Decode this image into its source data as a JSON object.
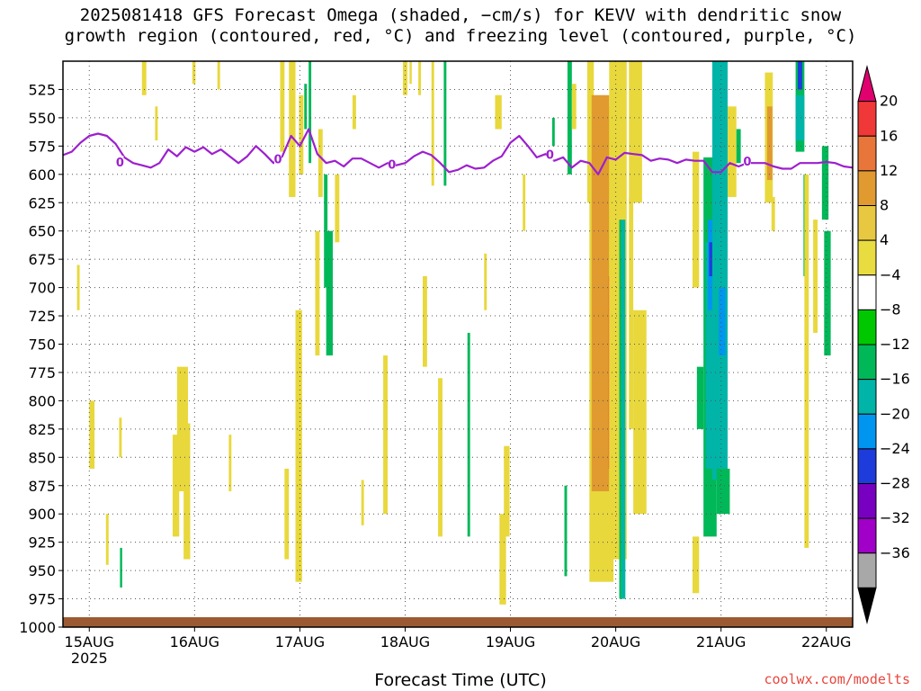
{
  "title": "2025081418 GFS Forecast Omega (shaded, −cm/s) for KEVV with dendritic snow\ngrowth region (contoured, red, °C) and freezing level (contoured, purple, °C)",
  "credit": "coolwx.com/modelts",
  "colors": {
    "freezing_line": "#9d1fcf",
    "ground": "#9b5a33",
    "grid": "#555555"
  },
  "chart_data": {
    "type": "heatmap",
    "title": "2025081418 GFS Forecast Omega (shaded, −cm/s) for KEVV with dendritic snow growth region (contoured, red, °C) and freezing level (contoured, purple, °C)",
    "xlabel": "Forecast Time (UTC)",
    "ylabel": "",
    "x_ticks": [
      {
        "label": "15AUG",
        "sub": "2025",
        "t": 6
      },
      {
        "label": "16AUG",
        "sub": "",
        "t": 30
      },
      {
        "label": "17AUG",
        "sub": "",
        "t": 54
      },
      {
        "label": "18AUG",
        "sub": "",
        "t": 78
      },
      {
        "label": "19AUG",
        "sub": "",
        "t": 102
      },
      {
        "label": "20AUG",
        "sub": "",
        "t": 126
      },
      {
        "label": "21AUG",
        "sub": "",
        "t": 150
      },
      {
        "label": "22AUG",
        "sub": "",
        "t": 174
      }
    ],
    "x_range_hours": [
      0,
      180
    ],
    "y_ticks": [
      525,
      550,
      575,
      600,
      625,
      650,
      675,
      700,
      725,
      750,
      775,
      800,
      825,
      850,
      875,
      900,
      925,
      950,
      975,
      1000
    ],
    "y_range_hPa": [
      500,
      1000
    ],
    "grid": true,
    "colorbar": {
      "labels": [
        "20",
        "16",
        "12",
        "8",
        "4",
        "−4",
        "−8",
        "−12",
        "−16",
        "−20",
        "−24",
        "−28",
        "−32",
        "−36"
      ],
      "colors": [
        "#e0006e",
        "#f03838",
        "#e8763a",
        "#e09a30",
        "#e8c840",
        "#e8dc40",
        "#ffffff",
        "#00c800",
        "#00b858",
        "#00b4a8",
        "#0096f0",
        "#1e3cdc",
        "#7800c0",
        "#a000c8",
        "#a8a8a8",
        "#000000"
      ]
    },
    "freezing_level_hPa": [
      [
        0,
        583
      ],
      [
        2,
        580
      ],
      [
        4,
        572
      ],
      [
        6,
        566
      ],
      [
        8,
        564
      ],
      [
        10,
        566
      ],
      [
        12,
        573
      ],
      [
        14,
        585
      ],
      [
        16,
        590
      ],
      [
        18,
        592
      ],
      [
        20,
        594
      ],
      [
        22,
        590
      ],
      [
        24,
        578
      ],
      [
        26,
        584
      ],
      [
        28,
        576
      ],
      [
        30,
        580
      ],
      [
        32,
        576
      ],
      [
        34,
        582
      ],
      [
        36,
        578
      ],
      [
        38,
        584
      ],
      [
        40,
        590
      ],
      [
        42,
        584
      ],
      [
        44,
        575
      ],
      [
        46,
        582
      ],
      [
        48,
        590
      ],
      [
        50,
        584
      ],
      [
        52,
        566
      ],
      [
        54,
        575
      ],
      [
        56,
        560
      ],
      [
        58,
        582
      ],
      [
        60,
        590
      ],
      [
        62,
        588
      ],
      [
        64,
        593
      ],
      [
        66,
        586
      ],
      [
        68,
        586
      ],
      [
        70,
        590
      ],
      [
        72,
        594
      ],
      [
        74,
        590
      ],
      [
        76,
        592
      ],
      [
        78,
        590
      ],
      [
        80,
        584
      ],
      [
        82,
        580
      ],
      [
        84,
        583
      ],
      [
        86,
        590
      ],
      [
        88,
        598
      ],
      [
        90,
        596
      ],
      [
        92,
        592
      ],
      [
        94,
        595
      ],
      [
        96,
        594
      ],
      [
        98,
        588
      ],
      [
        100,
        584
      ],
      [
        102,
        572
      ],
      [
        104,
        566
      ],
      [
        106,
        575
      ],
      [
        108,
        585
      ],
      [
        110,
        582
      ],
      [
        112,
        588
      ],
      [
        114,
        585
      ],
      [
        116,
        594
      ],
      [
        118,
        588
      ],
      [
        120,
        590
      ],
      [
        122,
        600
      ],
      [
        124,
        585
      ],
      [
        126,
        587
      ],
      [
        128,
        581
      ],
      [
        130,
        582
      ],
      [
        132,
        583
      ],
      [
        134,
        588
      ],
      [
        136,
        586
      ],
      [
        138,
        587
      ],
      [
        140,
        590
      ],
      [
        142,
        587
      ],
      [
        144,
        588
      ],
      [
        146,
        588
      ],
      [
        148,
        598
      ],
      [
        150,
        598
      ],
      [
        152,
        590
      ],
      [
        154,
        593
      ],
      [
        156,
        590
      ],
      [
        158,
        590
      ],
      [
        160,
        590
      ],
      [
        162,
        593
      ],
      [
        164,
        595
      ],
      [
        166,
        595
      ],
      [
        168,
        590
      ],
      [
        170,
        590
      ],
      [
        172,
        590
      ],
      [
        174,
        589
      ],
      [
        176,
        590
      ],
      [
        178,
        593
      ],
      [
        180,
        594
      ]
    ],
    "freezing_labels": [
      {
        "t": 13,
        "p": 590,
        "text": "0"
      },
      {
        "t": 49,
        "p": 587,
        "text": "0"
      },
      {
        "t": 75,
        "p": 592,
        "text": "0"
      },
      {
        "t": 111,
        "p": 583,
        "text": "0"
      },
      {
        "t": 156,
        "p": 589,
        "text": "0"
      }
    ],
    "omega_cells": [
      {
        "t0": 3.2,
        "t1": 3.8,
        "p0": 680,
        "p1": 720,
        "v": 6
      },
      {
        "t0": 6.0,
        "t1": 7.2,
        "p0": 800,
        "p1": 860,
        "v": 6
      },
      {
        "t0": 9.8,
        "t1": 10.4,
        "p0": 900,
        "p1": 945,
        "v": 6
      },
      {
        "t0": 12.8,
        "t1": 13.4,
        "p0": 815,
        "p1": 850,
        "v": 6
      },
      {
        "t0": 13.0,
        "t1": 13.5,
        "p0": 930,
        "p1": 965,
        "v": -8
      },
      {
        "t0": 18.0,
        "t1": 19.0,
        "p0": 500,
        "p1": 530,
        "v": 6
      },
      {
        "t0": 21.0,
        "t1": 21.6,
        "p0": 540,
        "p1": 570,
        "v": 6
      },
      {
        "t0": 25.0,
        "t1": 26.5,
        "p0": 830,
        "p1": 920,
        "v": 6
      },
      {
        "t0": 26.0,
        "t1": 28.5,
        "p0": 770,
        "p1": 880,
        "v": 6
      },
      {
        "t0": 27.5,
        "t1": 29.0,
        "p0": 820,
        "p1": 940,
        "v": 6
      },
      {
        "t0": 29.5,
        "t1": 30.2,
        "p0": 500,
        "p1": 520,
        "v": 6
      },
      {
        "t0": 35.2,
        "t1": 35.8,
        "p0": 500,
        "p1": 525,
        "v": 6
      },
      {
        "t0": 37.8,
        "t1": 38.4,
        "p0": 830,
        "p1": 880,
        "v": 6
      },
      {
        "t0": 49.5,
        "t1": 50.5,
        "p0": 500,
        "p1": 580,
        "v": 6
      },
      {
        "t0": 50.5,
        "t1": 51.5,
        "p0": 860,
        "p1": 940,
        "v": 6
      },
      {
        "t0": 51.5,
        "t1": 53.0,
        "p0": 500,
        "p1": 620,
        "v": 6
      },
      {
        "t0": 53.0,
        "t1": 54.5,
        "p0": 720,
        "p1": 960,
        "v": 6
      },
      {
        "t0": 53.8,
        "t1": 54.8,
        "p0": 530,
        "p1": 600,
        "v": 6
      },
      {
        "t0": 55.0,
        "t1": 55.6,
        "p0": 520,
        "p1": 560,
        "v": -8
      },
      {
        "t0": 56.0,
        "t1": 56.6,
        "p0": 500,
        "p1": 590,
        "v": -8
      },
      {
        "t0": 57.5,
        "t1": 58.5,
        "p0": 650,
        "p1": 760,
        "v": 6
      },
      {
        "t0": 58.2,
        "t1": 59.2,
        "p0": 560,
        "p1": 620,
        "v": 6
      },
      {
        "t0": 59.5,
        "t1": 60.3,
        "p0": 600,
        "p1": 700,
        "v": -8
      },
      {
        "t0": 60.0,
        "t1": 61.5,
        "p0": 650,
        "p1": 760,
        "v": -8
      },
      {
        "t0": 62.0,
        "t1": 63.0,
        "p0": 600,
        "p1": 660,
        "v": 6
      },
      {
        "t0": 66.0,
        "t1": 66.8,
        "p0": 530,
        "p1": 560,
        "v": 6
      },
      {
        "t0": 68.0,
        "t1": 68.6,
        "p0": 870,
        "p1": 910,
        "v": 6
      },
      {
        "t0": 73.0,
        "t1": 74.0,
        "p0": 760,
        "p1": 900,
        "v": 6
      },
      {
        "t0": 77.5,
        "t1": 78.5,
        "p0": 500,
        "p1": 530,
        "v": 6
      },
      {
        "t0": 79.0,
        "t1": 79.5,
        "p0": 500,
        "p1": 520,
        "v": 6
      },
      {
        "t0": 81.0,
        "t1": 81.6,
        "p0": 500,
        "p1": 530,
        "v": 6
      },
      {
        "t0": 82.0,
        "t1": 83.0,
        "p0": 690,
        "p1": 770,
        "v": 6
      },
      {
        "t0": 84.0,
        "t1": 84.6,
        "p0": 500,
        "p1": 610,
        "v": 6
      },
      {
        "t0": 85.5,
        "t1": 86.5,
        "p0": 780,
        "p1": 920,
        "v": 6
      },
      {
        "t0": 86.8,
        "t1": 87.4,
        "p0": 500,
        "p1": 610,
        "v": -8
      },
      {
        "t0": 92.2,
        "t1": 92.8,
        "p0": 740,
        "p1": 920,
        "v": -8
      },
      {
        "t0": 96.0,
        "t1": 96.6,
        "p0": 670,
        "p1": 720,
        "v": 6
      },
      {
        "t0": 98.5,
        "t1": 100.0,
        "p0": 530,
        "p1": 560,
        "v": 6
      },
      {
        "t0": 99.5,
        "t1": 101.0,
        "p0": 900,
        "p1": 980,
        "v": 6
      },
      {
        "t0": 100.5,
        "t1": 101.8,
        "p0": 840,
        "p1": 920,
        "v": 6
      },
      {
        "t0": 104.8,
        "t1": 105.4,
        "p0": 600,
        "p1": 650,
        "v": 6
      },
      {
        "t0": 111.5,
        "t1": 112.1,
        "p0": 550,
        "p1": 575,
        "v": -8
      },
      {
        "t0": 114.3,
        "t1": 114.9,
        "p0": 875,
        "p1": 955,
        "v": -8
      },
      {
        "t0": 115.0,
        "t1": 116.0,
        "p0": 500,
        "p1": 600,
        "v": -8
      },
      {
        "t0": 116.0,
        "t1": 117.0,
        "p0": 520,
        "p1": 560,
        "v": 6
      },
      {
        "t0": 119.5,
        "t1": 121.0,
        "p0": 500,
        "p1": 625,
        "v": 6
      },
      {
        "t0": 120.0,
        "t1": 125.5,
        "p0": 540,
        "p1": 960,
        "v": 6
      },
      {
        "t0": 120.5,
        "t1": 124.5,
        "p0": 530,
        "p1": 880,
        "v": 10
      },
      {
        "t0": 124.3,
        "t1": 126.0,
        "p0": 690,
        "p1": 860,
        "v": 14
      },
      {
        "t0": 124.5,
        "t1": 128.5,
        "p0": 500,
        "p1": 940,
        "v": 6
      },
      {
        "t0": 126.8,
        "t1": 127.3,
        "p0": 640,
        "p1": 975,
        "v": -8
      },
      {
        "t0": 127.3,
        "t1": 128.2,
        "p0": 640,
        "p1": 975,
        "v": -12
      },
      {
        "t0": 129.0,
        "t1": 132.0,
        "p0": 500,
        "p1": 625,
        "v": 6
      },
      {
        "t0": 129.0,
        "t1": 130.0,
        "p0": 620,
        "p1": 825,
        "v": 6
      },
      {
        "t0": 130.0,
        "t1": 133.0,
        "p0": 720,
        "p1": 900,
        "v": 6
      },
      {
        "t0": 143.5,
        "t1": 145.0,
        "p0": 580,
        "p1": 700,
        "v": 6
      },
      {
        "t0": 143.5,
        "t1": 145.0,
        "p0": 920,
        "p1": 970,
        "v": 6
      },
      {
        "t0": 144.5,
        "t1": 146.0,
        "p0": 770,
        "p1": 825,
        "v": -8
      },
      {
        "t0": 146.0,
        "t1": 149.0,
        "p0": 585,
        "p1": 920,
        "v": -8
      },
      {
        "t0": 146.5,
        "t1": 148.5,
        "p0": 660,
        "p1": 860,
        "v": -12
      },
      {
        "t0": 147.0,
        "t1": 148.5,
        "p0": 640,
        "p1": 720,
        "v": -16
      },
      {
        "t0": 147.3,
        "t1": 148.3,
        "p0": 660,
        "p1": 690,
        "v": -20
      },
      {
        "t0": 148.0,
        "t1": 151.5,
        "p0": 500,
        "p1": 870,
        "v": -12
      },
      {
        "t0": 149.5,
        "t1": 151.0,
        "p0": 700,
        "p1": 760,
        "v": -16
      },
      {
        "t0": 149.0,
        "t1": 152.0,
        "p0": 860,
        "p1": 900,
        "v": -8
      },
      {
        "t0": 151.5,
        "t1": 153.5,
        "p0": 540,
        "p1": 620,
        "v": 6
      },
      {
        "t0": 153.5,
        "t1": 154.5,
        "p0": 560,
        "p1": 590,
        "v": -8
      },
      {
        "t0": 160.0,
        "t1": 161.8,
        "p0": 510,
        "p1": 625,
        "v": 6
      },
      {
        "t0": 160.5,
        "t1": 161.7,
        "p0": 540,
        "p1": 605,
        "v": 10
      },
      {
        "t0": 161.5,
        "t1": 162.3,
        "p0": 620,
        "p1": 650,
        "v": 6
      },
      {
        "t0": 167.0,
        "t1": 169.0,
        "p0": 500,
        "p1": 580,
        "v": -8
      },
      {
        "t0": 167.0,
        "t1": 169.0,
        "p0": 530,
        "p1": 570,
        "v": -12
      },
      {
        "t0": 167.5,
        "t1": 168.5,
        "p0": 500,
        "p1": 525,
        "v": -20
      },
      {
        "t0": 168.8,
        "t1": 169.3,
        "p0": 600,
        "p1": 690,
        "v": -8
      },
      {
        "t0": 169.0,
        "t1": 170.0,
        "p0": 600,
        "p1": 930,
        "v": 6
      },
      {
        "t0": 171.0,
        "t1": 172.0,
        "p0": 640,
        "p1": 740,
        "v": 6
      },
      {
        "t0": 173.0,
        "t1": 174.5,
        "p0": 575,
        "p1": 640,
        "v": -8
      },
      {
        "t0": 173.5,
        "t1": 175.0,
        "p0": 650,
        "p1": 760,
        "v": -8
      }
    ]
  }
}
